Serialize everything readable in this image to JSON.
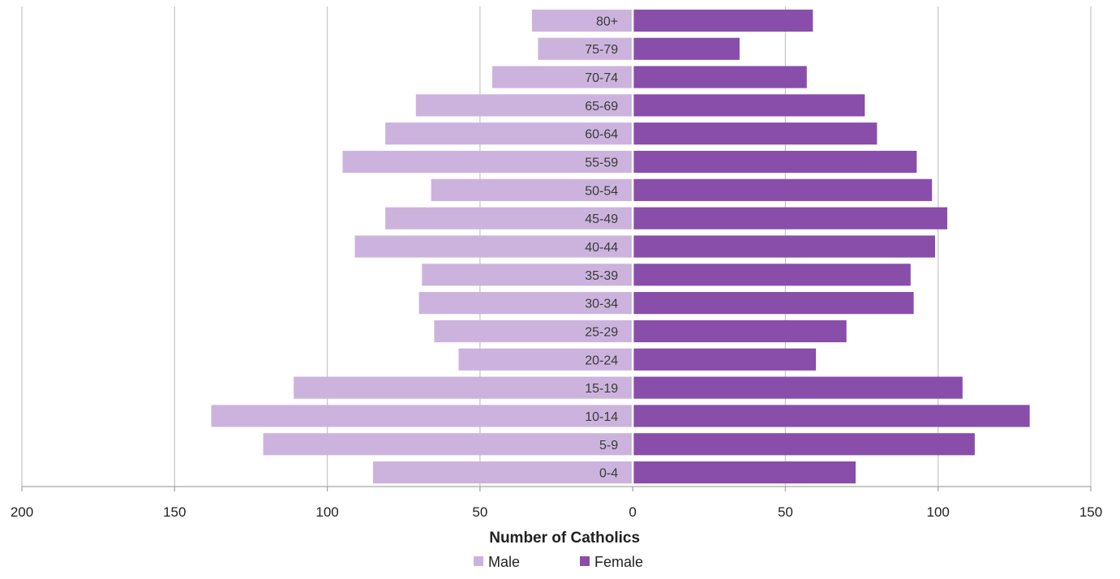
{
  "chart_data": {
    "type": "bar",
    "orientation": "horizontal",
    "subtype": "population-pyramid",
    "categories": [
      "0-4",
      "5-9",
      "10-14",
      "15-19",
      "20-24",
      "25-29",
      "30-34",
      "35-39",
      "40-44",
      "45-49",
      "50-54",
      "55-59",
      "60-64",
      "65-69",
      "70-74",
      "75-79",
      "80+"
    ],
    "series": [
      {
        "name": "Male",
        "side": "left",
        "color": "#ccb3dd",
        "values": [
          85,
          121,
          138,
          111,
          57,
          65,
          70,
          69,
          91,
          81,
          66,
          95,
          81,
          71,
          46,
          31,
          33
        ]
      },
      {
        "name": "Female",
        "side": "right",
        "color": "#884eaa",
        "values": [
          73,
          112,
          130,
          108,
          60,
          70,
          92,
          91,
          99,
          103,
          98,
          93,
          80,
          76,
          57,
          35,
          59
        ]
      }
    ],
    "xlabel": "Number of Catholics",
    "xlim": [
      -200,
      150
    ],
    "x_ticks": [
      -200,
      -150,
      -100,
      -50,
      0,
      50,
      100,
      150
    ],
    "x_tick_labels": [
      "200",
      "150",
      "100",
      "50",
      "0",
      "50",
      "100",
      "150"
    ],
    "grid": "vertical",
    "legend": {
      "position": "bottom",
      "entries": [
        "Male",
        "Female"
      ]
    }
  }
}
